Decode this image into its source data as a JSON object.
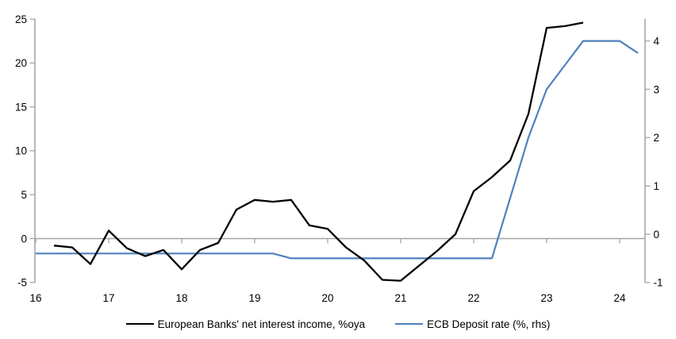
{
  "chart_data": {
    "type": "line",
    "title": "",
    "xlabel": "",
    "ylabel_left": "",
    "ylabel_right": "",
    "grid": "zero-line-only",
    "legend_position": "bottom",
    "x_axis": {
      "ticks": [
        16,
        17,
        18,
        19,
        20,
        21,
        22,
        23,
        24
      ],
      "range": [
        16,
        24.35
      ],
      "tick_style": "short ticks hanging below the zero line at each year"
    },
    "y_axis_left": {
      "ticks": [
        -5,
        0,
        5,
        10,
        15,
        20,
        25
      ],
      "range": [
        -5,
        25
      ]
    },
    "y_axis_right": {
      "ticks": [
        -1,
        0,
        1,
        2,
        3,
        4
      ],
      "range": [
        -1,
        4
      ]
    },
    "series": [
      {
        "name": "European Banks' net interest income, %oya",
        "axis": "left",
        "color": "#000000",
        "x": [
          16.25,
          16.5,
          16.75,
          17.0,
          17.25,
          17.5,
          17.75,
          18.0,
          18.25,
          18.5,
          18.75,
          19.0,
          19.25,
          19.5,
          19.75,
          20.0,
          20.25,
          20.5,
          20.75,
          21.0,
          21.25,
          21.5,
          21.75,
          22.0,
          22.25,
          22.5,
          22.75,
          23.0,
          23.25,
          23.5
        ],
        "values": [
          -0.8,
          -1.0,
          -2.9,
          0.9,
          -1.1,
          -2.0,
          -1.3,
          -3.5,
          -1.3,
          -0.5,
          3.3,
          4.4,
          4.2,
          4.4,
          1.5,
          1.1,
          -1.0,
          -2.5,
          -4.7,
          -4.8,
          -3.1,
          -1.4,
          0.5,
          5.4,
          7.0,
          8.9,
          14.2,
          24.0,
          24.2,
          24.6
        ]
      },
      {
        "name": "ECB Deposit rate (%, rhs)",
        "axis": "right",
        "color": "#4F81BD",
        "x": [
          16.0,
          19.25,
          19.5,
          22.25,
          22.5,
          22.75,
          23.0,
          23.25,
          23.5,
          24.0,
          24.25
        ],
        "values": [
          -0.4,
          -0.4,
          -0.5,
          -0.5,
          0.75,
          2.0,
          3.0,
          3.5,
          4.0,
          4.0,
          3.75
        ]
      }
    ]
  },
  "colors": {
    "nii_line": "#000000",
    "ecb_line": "#4F81BD",
    "axis": "#A6A6A6",
    "text": "#000000",
    "background": "#FFFFFF"
  }
}
